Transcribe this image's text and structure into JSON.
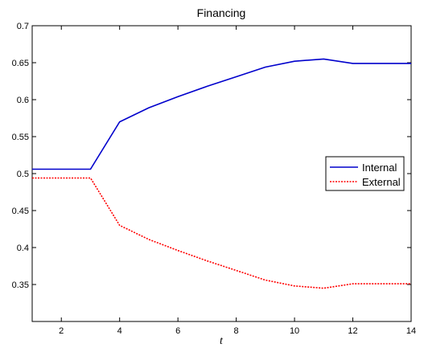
{
  "chart_data": {
    "type": "line",
    "title": "Financing",
    "xlabel": "t",
    "ylabel": "",
    "xlim": [
      1,
      14
    ],
    "ylim": [
      0.3,
      0.7
    ],
    "xticks": [
      2,
      4,
      6,
      8,
      10,
      12,
      14
    ],
    "yticks": [
      0.35,
      0.4,
      0.45,
      0.5,
      0.55,
      0.6,
      0.65,
      0.7
    ],
    "ytick_labels": [
      "0.35",
      "0.4",
      "0.45",
      "0.5",
      "0.55",
      "0.6",
      "0.65",
      "0.7"
    ],
    "grid": false,
    "legend_position": "right",
    "series": [
      {
        "name": "Internal",
        "color": "#0000cc",
        "dash": "solid",
        "x": [
          1,
          2,
          3,
          4,
          5,
          6,
          7,
          8,
          9,
          10,
          11,
          12,
          13,
          14
        ],
        "values": [
          0.506,
          0.506,
          0.506,
          0.57,
          0.589,
          0.604,
          0.618,
          0.631,
          0.644,
          0.652,
          0.655,
          0.649,
          0.649,
          0.649
        ]
      },
      {
        "name": "External",
        "color": "#ff0000",
        "dash": "dotted",
        "x": [
          1,
          2,
          3,
          4,
          5,
          6,
          7,
          8,
          9,
          10,
          11,
          12,
          13,
          14
        ],
        "values": [
          0.494,
          0.494,
          0.494,
          0.43,
          0.411,
          0.396,
          0.382,
          0.369,
          0.356,
          0.348,
          0.345,
          0.351,
          0.351,
          0.351
        ]
      }
    ]
  }
}
